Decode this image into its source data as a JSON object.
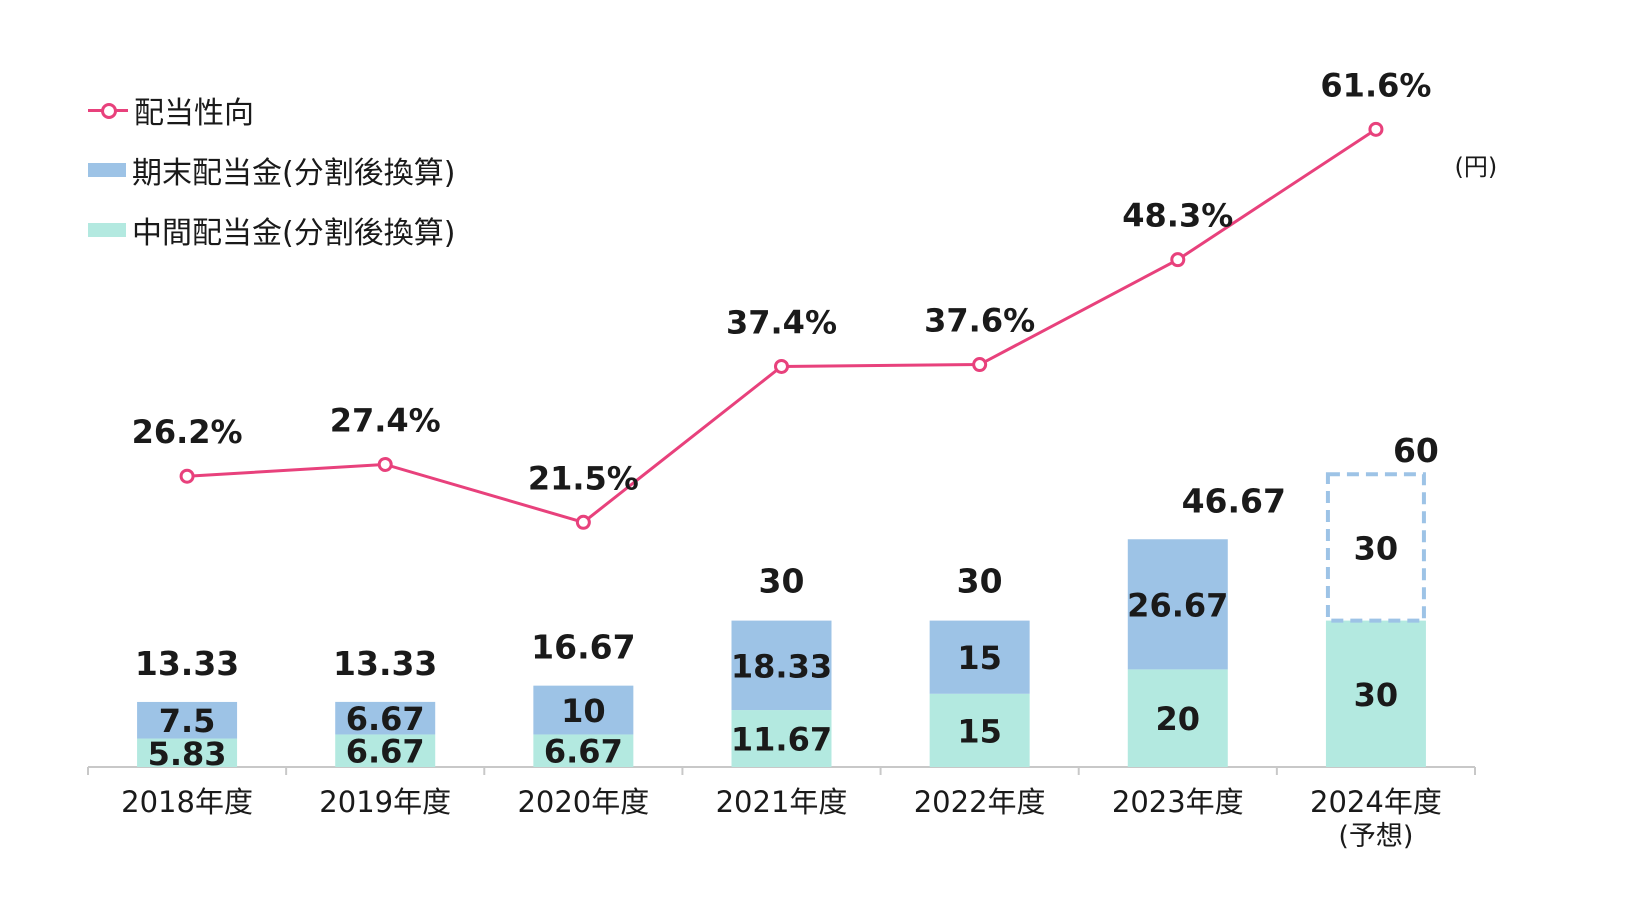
{
  "colors": {
    "final": "#9dc3e6",
    "interim": "#b3e9e0",
    "payout": "#e8417c",
    "axis": "#c8c8c8",
    "text": "#1a1a1a"
  },
  "legend": {
    "payout_label": "配当性向",
    "final_label": "期末配当金(分割後換算)",
    "interim_label": "中間配当金(分割後換算)"
  },
  "unit_label": "(円)",
  "chart_data": {
    "type": "bar",
    "categories": [
      "2018年度",
      "2019年度",
      "2020年度",
      "2021年度",
      "2022年度",
      "2023年度",
      "2024年度"
    ],
    "category_notes": [
      "",
      "",
      "",
      "",
      "",
      "",
      "(予想)"
    ],
    "series": [
      {
        "name": "中間配当金(分割後換算)",
        "values": [
          5.83,
          6.67,
          6.67,
          11.67,
          15,
          20,
          30
        ],
        "labels": [
          "5.83",
          "6.67",
          "6.67",
          "11.67",
          "15",
          "20",
          "30"
        ]
      },
      {
        "name": "期末配当金(分割後換算)",
        "values": [
          7.5,
          6.67,
          10,
          18.33,
          15,
          26.67,
          30
        ],
        "labels": [
          "7.5",
          "6.67",
          "10",
          "18.33",
          "15",
          "26.67",
          "30"
        ],
        "forecast_index": 6
      }
    ],
    "totals": [
      "13.33",
      "13.33",
      "16.67",
      "30",
      "30",
      "46.67",
      "60"
    ],
    "line_series": {
      "name": "配当性向",
      "values": [
        26.2,
        27.4,
        21.5,
        37.4,
        37.6,
        48.3,
        61.6
      ],
      "labels": [
        "26.2%",
        "27.4%",
        "21.5%",
        "37.4%",
        "37.6%",
        "48.3%",
        "61.6%"
      ]
    },
    "ylim": [
      0,
      60
    ],
    "line_ylim": [
      0,
      70
    ],
    "legend_position": "top-left",
    "grid": false
  }
}
